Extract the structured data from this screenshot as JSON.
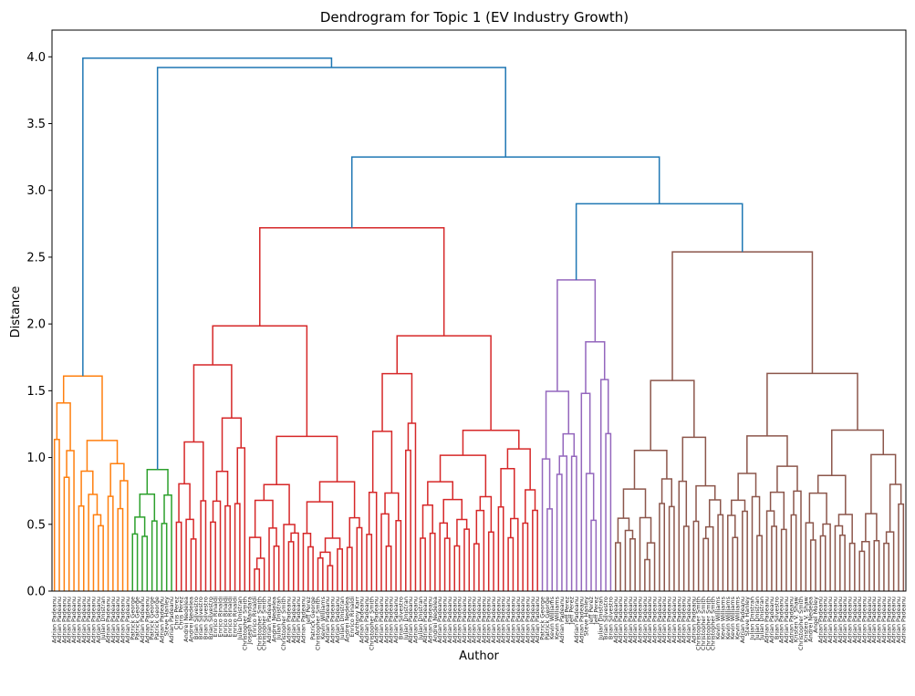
{
  "chart_data": {
    "type": "dendrogram",
    "title": "Dendrogram for Topic 1 (EV Industry Growth)",
    "xlabel": "Author",
    "ylabel": "Distance",
    "ylim": [
      0,
      4.2
    ],
    "yticks": [
      "0.0",
      "0.5",
      "1.0",
      "1.5",
      "2.0",
      "2.5",
      "3.0",
      "3.5",
      "4.0"
    ],
    "grid": false,
    "colors": {
      "root": "#1f77b4",
      "c1": "#ff7f0e",
      "c2": "#2ca02c",
      "c3": "#d62728",
      "c4": "#9467bd",
      "c5": "#8c564b"
    },
    "cluster_sizes": {
      "c1": 16,
      "c2": 9,
      "c3": 75,
      "c4": 15,
      "c5": 60
    },
    "links": [
      {
        "name": "root",
        "height": 3.99,
        "children": [
          "c1-top",
          "rest"
        ]
      },
      {
        "name": "rest",
        "height": 3.92,
        "children": [
          "c2-top",
          "rest2"
        ]
      },
      {
        "name": "rest2",
        "height": 3.25,
        "children": [
          "c3-top",
          "c45"
        ]
      },
      {
        "name": "c45",
        "height": 2.9,
        "children": [
          "c4-top",
          "c5-top"
        ]
      },
      {
        "name": "c1-top",
        "height": 1.61
      },
      {
        "name": "c2-top",
        "height": 0.91
      },
      {
        "name": "c3-top",
        "height": 2.72
      },
      {
        "name": "c4-top",
        "height": 2.33
      },
      {
        "name": "c5-top",
        "height": 2.54
      }
    ],
    "leaves": [
      "Adrian Padeanu",
      "Adrian Padeanu",
      "Adrian Padeanu",
      "Adrian Padeanu",
      "Adrian Padeanu",
      "Adrian Padeanu",
      "Adrian Padeanu",
      "Adrian Padeanu",
      "Adrian Padeanu",
      "Adrian Padeanu",
      "Julian Dnistran",
      "Adrian Padeanu",
      "Adrian Padeanu",
      "Adrian Padeanu",
      "Adrian Padeanu",
      "Adrian Padeanu",
      "Patrick George",
      "Patrick George",
      "Adrian Padeanu",
      "Adrian Padeanu",
      "Patrick George",
      "Patrick George",
      "Adrian Padeanu",
      "Steve Hanley",
      "Adrian Padeanu",
      "Chris Perez",
      "Chris Perez",
      "Andrei Nedelea",
      "Andrei Nedelea",
      "Brian Silvestro",
      "Brian Silvestro",
      "Brian Silvestro",
      "Brian Silvestro",
      "Enrico Rinaldi",
      "Enrico Rinaldi",
      "Enrico Rinaldi",
      "Enrico Rinaldi",
      "Enrico Rinaldi",
      "Julian Dnistran",
      "Christopher Smith",
      "Joseph Mandara",
      "Enrico Rinaldi",
      "Christopher Smith",
      "Christopher Smith",
      "Adrian Padeanu",
      "Andrei Nedelea",
      "Julian Dnistran",
      "Christopher Smith",
      "Adrian Padeanu",
      "Adrian Padeanu",
      "Adrian Padeanu",
      "Adrian Padeanu",
      "Jeff Perez",
      "Patrick George",
      "Christopher Smith",
      "Kevin Williams",
      "Adrian Padeanu",
      "Adrian Padeanu",
      "Adrian Padeanu",
      "Julian Dnistran",
      "Andrei Nedelea",
      "Enrico Rinaldi",
      "Anthony Karr",
      "Adrian Padeanu",
      "Adrian Padeanu",
      "Christopher Smith",
      "Adrian Padeanu",
      "Adrian Padeanu",
      "Adrian Padeanu",
      "Adrian Padeanu",
      "Adrian Padeanu",
      "Brian Silvestro",
      "Julian Dnistran",
      "Adrian Padeanu",
      "Adrian Padeanu",
      "Julian Dnistran",
      "Adrian Padeanu",
      "Adrian Padeanu",
      "Andrei Nedelea",
      "Adrian Padeanu",
      "Adrian Padeanu",
      "Adrian Padeanu",
      "Adrian Padeanu",
      "Adrian Padeanu",
      "Adrian Padeanu",
      "Adrian Padeanu",
      "Adrian Padeanu",
      "Adrian Padeanu",
      "Adrian Padeanu",
      "Adrian Padeanu",
      "Adrian Padeanu",
      "Adrian Padeanu",
      "Adrian Padeanu",
      "Adrian Padeanu",
      "Adrian Padeanu",
      "Adrian Padeanu",
      "Adrian Padeanu",
      "Adrian Padeanu",
      "Adrian Padeanu",
      "Adrian Padeanu",
      "Patrick George",
      "Patrick George",
      "Kevin Williams",
      "Kevin Williams",
      "Adrian Padeanu",
      "Jeff Perez",
      "Jeff Perez",
      "Adrian Padeanu",
      "Adrian Padeanu",
      "Steve Hanley",
      "Jeff Perez",
      "Jeff Perez",
      "Julian Dnistran",
      "Brian Silvestro",
      "Brian Silvestro",
      "Adrian Padeanu",
      "Adrian Padeanu",
      "Adrian Padeanu",
      "Adrian Padeanu",
      "Adrian Padeanu",
      "Adrian Padeanu",
      "Adrian Padeanu",
      "Adrian Padeanu",
      "Adrian Padeanu",
      "Adrian Padeanu",
      "Adrian Padeanu",
      "Adrian Padeanu",
      "Adrian Padeanu",
      "Adrian Padeanu",
      "Adrian Padeanu",
      "Adrian Padeanu",
      "Adrian Padeanu",
      "Christopher Smith",
      "Christopher Smith",
      "Christopher Smith",
      "Christopher Smith",
      "Kevin Williams",
      "Kevin Williams",
      "Kevin Williams",
      "Kevin Williams",
      "Kevin Williams",
      "Adrian Padeanu",
      "Steve Hanley",
      "Julian Dnistran",
      "Julian Dnistran",
      "Julian Dnistran",
      "Adrian Padeanu",
      "Adrian Padeanu",
      "Brian Silvestro",
      "Adrian Padeanu",
      "Adrian Padeanu",
      "Adrian Padeanu",
      "Kristen V. Shaw",
      "Christopher Smith",
      "Kristen V. Shaw",
      "Andrei Nedelea",
      "Angel Moley",
      "Adrian Padeanu",
      "Adrian Padeanu",
      "Adrian Padeanu",
      "Adrian Padeanu",
      "Adrian Padeanu",
      "Adrian Padeanu",
      "Adrian Padeanu",
      "Adrian Padeanu",
      "Adrian Padeanu",
      "Adrian Padeanu",
      "Adrian Padeanu",
      "Adrian Padeanu",
      "Adrian Padeanu",
      "Adrian Padeanu",
      "Adrian Padeanu",
      "Adrian Padeanu",
      "Adrian Padeanu",
      "Adrian Padeanu"
    ]
  }
}
